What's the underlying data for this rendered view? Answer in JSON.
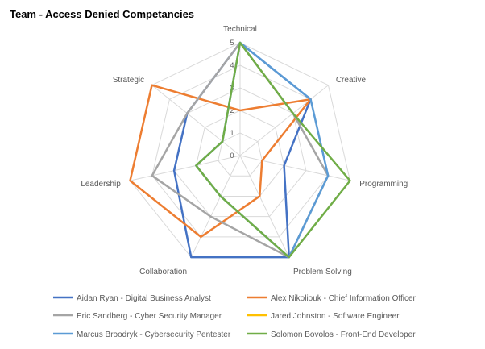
{
  "chart_data": {
    "type": "radar",
    "title": "Team - Access Denied Competancies",
    "axes": [
      "Technical",
      "Creative",
      "Programming",
      "Problem Solving",
      "Collaboration",
      "Leadership",
      "Strategic"
    ],
    "rlim": [
      0,
      5
    ],
    "ticks": [
      "0",
      "1",
      "2",
      "3",
      "4",
      "5"
    ],
    "grid": true,
    "legend_position": "bottom",
    "series": [
      {
        "name": "Aidan Ryan - Digital Business Analyst",
        "color": "#4472C4",
        "values": [
          5,
          4,
          2,
          5,
          5,
          3,
          3
        ]
      },
      {
        "name": "Alex Nikoliouk - Chief Information Officer",
        "color": "#ED7D31",
        "values": [
          2,
          4,
          1,
          2,
          4,
          5,
          5
        ]
      },
      {
        "name": "Eric Sandberg - Cyber Security Manager",
        "color": "#A5A5A5",
        "values": [
          5,
          3,
          4,
          5,
          3,
          4,
          3
        ]
      },
      {
        "name": "Jared Johnston - Software Engineer",
        "color": "#FFC000",
        "values": []
      },
      {
        "name": "Marcus Broodryk - Cybersecurity Pentester",
        "color": "#5B9BD5",
        "values": [
          5,
          4,
          4,
          5,
          2,
          2,
          1
        ]
      },
      {
        "name": "Solomon Bovolos - Front-End Developer",
        "color": "#70AD47",
        "values": [
          5,
          3,
          5,
          5,
          2,
          2,
          1
        ]
      }
    ]
  }
}
